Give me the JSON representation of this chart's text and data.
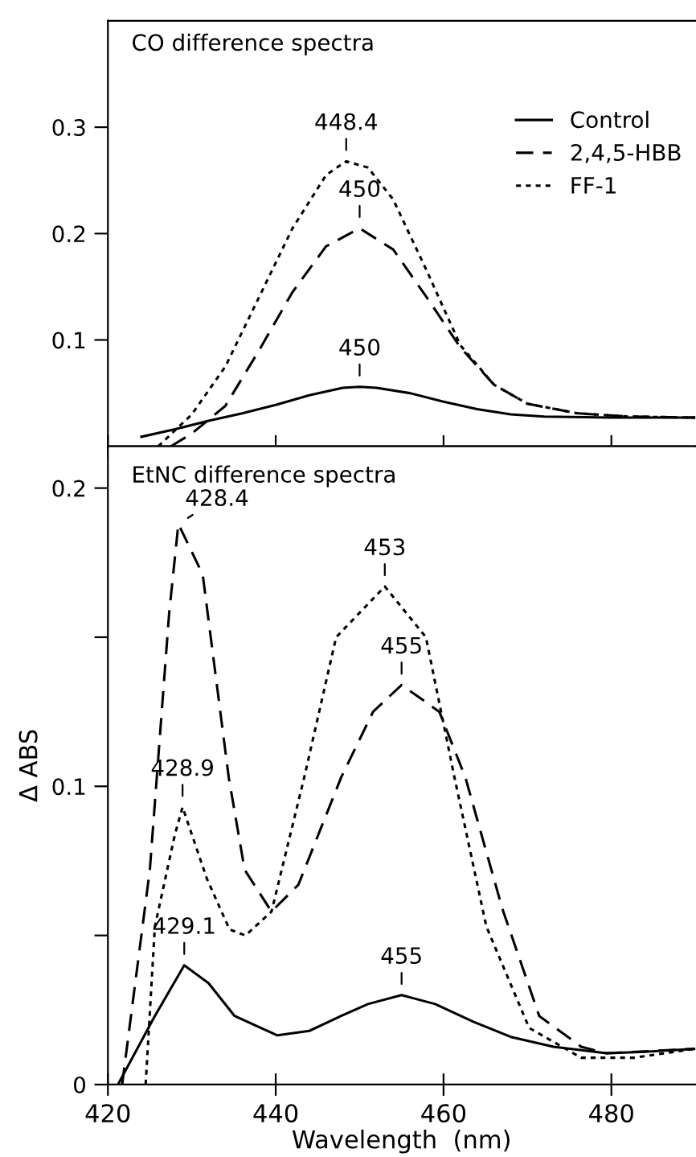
{
  "chart_data": [
    {
      "type": "line",
      "title": "CO difference spectra",
      "xlim": [
        420,
        490
      ],
      "ylim": [
        0,
        0.4
      ],
      "xticks": [
        420,
        440,
        460,
        480
      ],
      "yticks": [
        0.1,
        0.2,
        0.3
      ],
      "tick_labels": "y",
      "legend": "top right",
      "series": [
        {
          "name": "Control",
          "color": "#000000",
          "line_style": "solid",
          "x": [
            424,
            428,
            432,
            436,
            440,
            444,
            448,
            450,
            452,
            456,
            460,
            464,
            468,
            472,
            480,
            490
          ],
          "values": [
            0.009,
            0.016,
            0.024,
            0.031,
            0.039,
            0.048,
            0.055,
            0.056,
            0.055,
            0.05,
            0.042,
            0.035,
            0.03,
            0.028,
            0.027,
            0.027
          ]
        },
        {
          "name": "2,4,5-HBB",
          "color": "#000000",
          "line_style": "dashed",
          "x": [
            427.5,
            430,
            434,
            438,
            442,
            446,
            450,
            454,
            458,
            462,
            466,
            470,
            476,
            482,
            490
          ],
          "values": [
            0,
            0.012,
            0.038,
            0.09,
            0.145,
            0.188,
            0.205,
            0.185,
            0.14,
            0.093,
            0.058,
            0.04,
            0.031,
            0.028,
            0.027
          ]
        },
        {
          "name": "FF-1",
          "color": "#000000",
          "line_style": "dotted",
          "x": [
            426,
            430,
            434,
            438,
            442,
            446,
            448.4,
            451,
            454,
            458,
            462,
            466,
            470,
            476,
            482,
            490
          ],
          "values": [
            0,
            0.03,
            0.075,
            0.14,
            0.205,
            0.255,
            0.268,
            0.262,
            0.232,
            0.165,
            0.095,
            0.058,
            0.04,
            0.031,
            0.028,
            0.027
          ]
        }
      ],
      "annotations": [
        {
          "text": "448.4",
          "x": 448.4,
          "y": 0.268
        },
        {
          "text": "450",
          "x": 450,
          "y": 0.205
        },
        {
          "text": "450",
          "x": 450,
          "y": 0.056
        }
      ]
    },
    {
      "type": "line",
      "title": "EtNC difference spectra",
      "xlabel": "Wavelength  (nm)",
      "ylabel": "Δ ABS",
      "xlim": [
        420,
        490
      ],
      "ylim": [
        0,
        0.214
      ],
      "xticks": [
        420,
        440,
        460,
        480
      ],
      "yticks": [
        0,
        {
          "value": 0.05,
          "label": null
        },
        0.1,
        {
          "value": 0.15,
          "label": null
        },
        0.2
      ],
      "series": [
        {
          "color": "#000000",
          "line_style": "solid",
          "x": [
            421.2,
            425.6,
            429.1,
            432,
            435.1,
            440.2,
            444,
            447.8,
            451,
            455,
            459,
            463.6,
            468,
            473.1,
            479.4,
            484,
            490
          ],
          "values": [
            0,
            0.023,
            0.04,
            0.034,
            0.023,
            0.0165,
            0.018,
            0.023,
            0.027,
            0.03,
            0.027,
            0.021,
            0.016,
            0.0127,
            0.0105,
            0.011,
            0.012
          ]
        },
        {
          "color": "#000000",
          "line_style": "dashed",
          "x": [
            421.7,
            425,
            427.3,
            428.4,
            431.3,
            434.4,
            436.3,
            439.5,
            442.7,
            447.8,
            451.6,
            455,
            459.5,
            462.6,
            467,
            471.4,
            476.4,
            479.4,
            490
          ],
          "values": [
            0,
            0.072,
            0.158,
            0.188,
            0.171,
            0.103,
            0.072,
            0.058,
            0.067,
            0.103,
            0.125,
            0.134,
            0.125,
            0.103,
            0.059,
            0.023,
            0.0127,
            0.0105,
            0.012
          ]
        },
        {
          "color": "#000000",
          "line_style": "dotted",
          "x": [
            424.5,
            425.6,
            428,
            428.9,
            431.8,
            434.5,
            436.4,
            439.5,
            443.4,
            447.2,
            453,
            457.9,
            461.3,
            465.1,
            470.2,
            476.4,
            482.7,
            490
          ],
          "values": [
            0,
            0.053,
            0.084,
            0.093,
            0.069,
            0.052,
            0.05,
            0.058,
            0.103,
            0.15,
            0.167,
            0.15,
            0.103,
            0.053,
            0.019,
            0.009,
            0.009,
            0.012
          ]
        }
      ],
      "annotations": [
        {
          "text": "428.4",
          "x": 428.4,
          "y": 0.188
        },
        {
          "text": "453",
          "x": 453,
          "y": 0.167
        },
        {
          "text": "455",
          "x": 455,
          "y": 0.134
        },
        {
          "text": "428.9",
          "x": 428.9,
          "y": 0.093
        },
        {
          "text": "429.1",
          "x": 429.1,
          "y": 0.04
        },
        {
          "text": "455",
          "x": 455,
          "y": 0.03
        }
      ]
    }
  ]
}
